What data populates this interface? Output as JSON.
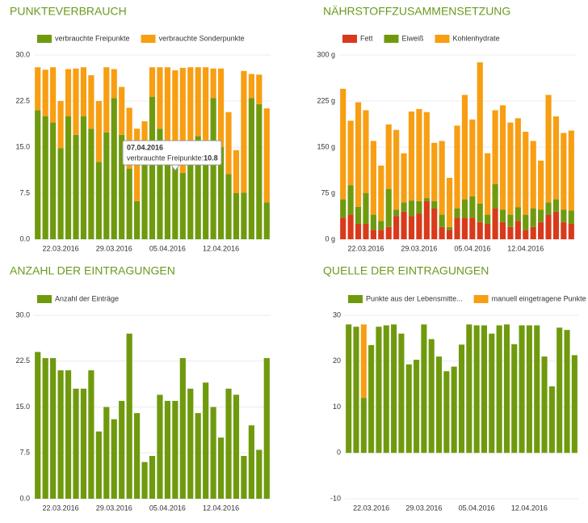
{
  "chart_data": [
    {
      "type": "bar",
      "title": "PUNKTEVERBRAUCH",
      "categories": [
        null,
        null,
        null,
        "22.03.2016",
        null,
        null,
        null,
        null,
        null,
        null,
        "29.03.2016",
        null,
        null,
        null,
        null,
        null,
        null,
        "05.04.2016",
        null,
        null,
        null,
        null,
        null,
        null,
        "12.04.2016",
        null,
        null,
        null,
        null,
        null,
        null
      ],
      "series": [
        {
          "name": "verbrauchte Freipunkte",
          "color": "#6f9a0e",
          "values": [
            21,
            20,
            19,
            14.8,
            20,
            17,
            20,
            18,
            12.6,
            17.4,
            23,
            17,
            11.5,
            6.2,
            15,
            23.2,
            18,
            15,
            15,
            10.8,
            12.3,
            16.8,
            14.9,
            23,
            15,
            10.6,
            7.5,
            7.6,
            23,
            22,
            6
          ]
        },
        {
          "name": "verbrauchte Sonderpunkte",
          "color": "#f89e12",
          "values": [
            7,
            7.6,
            9,
            7.7,
            7.7,
            10.8,
            8,
            8.7,
            9.9,
            10.6,
            4.7,
            7.8,
            9.9,
            11.8,
            4.2,
            4.8,
            10,
            13,
            12.5,
            17.1,
            15.7,
            11.2,
            13.1,
            4.8,
            12.8,
            10.1,
            7,
            19.8,
            3.9,
            4.8,
            15.3
          ]
        }
      ],
      "ylim": [
        0,
        30
      ],
      "yticks": [
        {
          "value": 0,
          "label": "0.0"
        },
        7.5,
        {
          "value": 15,
          "label": "15.0"
        },
        22.5,
        {
          "value": 30,
          "label": "30.0"
        }
      ],
      "grid": true,
      "legend": "top",
      "tooltip": {
        "date": "07.04.2016",
        "label": "verbrauchte Freipunkte:",
        "value": 10.8
      }
    },
    {
      "type": "bar",
      "title": "NÄHRSTOFFZUSAMMENSETZUNG",
      "categories": [
        null,
        null,
        null,
        "22.03.2016",
        null,
        null,
        null,
        null,
        null,
        null,
        "29.03.2016",
        null,
        null,
        null,
        null,
        null,
        null,
        "05.04.2016",
        null,
        null,
        null,
        null,
        null,
        null,
        "12.04.2016",
        null,
        null,
        null,
        null,
        null,
        null
      ],
      "series": [
        {
          "name": "Fett",
          "color": "#d93a1b",
          "values": [
            35,
            40,
            25,
            25,
            15,
            15,
            20,
            38,
            45,
            38,
            42,
            62,
            50,
            20,
            15,
            35,
            35,
            35,
            28,
            25,
            50,
            28,
            20,
            30,
            15,
            20,
            28,
            40,
            45,
            28,
            25
          ]
        },
        {
          "name": "Eiweiß",
          "color": "#6f9a0e",
          "values": [
            30,
            48,
            28,
            50,
            25,
            15,
            62,
            10,
            15,
            25,
            20,
            5,
            12,
            20,
            5,
            15,
            30,
            35,
            30,
            15,
            40,
            20,
            20,
            22,
            25,
            30,
            20,
            20,
            20,
            20,
            22
          ]
        },
        {
          "name": "Kohlenhydrate",
          "color": "#f89e12",
          "values": [
            180,
            105,
            170,
            135,
            120,
            90,
            105,
            130,
            80,
            145,
            150,
            140,
            95,
            120,
            80,
            135,
            170,
            125,
            230,
            100,
            120,
            170,
            150,
            145,
            135,
            110,
            80,
            175,
            135,
            125,
            130
          ]
        }
      ],
      "ylim": [
        0,
        300
      ],
      "yticks": [
        {
          "value": 0,
          "label": "0 g"
        },
        {
          "value": 75,
          "label": "75 g"
        },
        {
          "value": 150,
          "label": "150 g"
        },
        {
          "value": 225,
          "label": "225 g"
        },
        {
          "value": 300,
          "label": "300 g"
        }
      ],
      "grid": true,
      "legend": "top"
    },
    {
      "type": "bar",
      "title": "ANZAHL DER EINTRAGUNGEN",
      "categories": [
        null,
        null,
        null,
        "22.03.2016",
        null,
        null,
        null,
        null,
        null,
        null,
        "29.03.2016",
        null,
        null,
        null,
        null,
        null,
        null,
        "05.04.2016",
        null,
        null,
        null,
        null,
        null,
        null,
        "12.04.2016",
        null,
        null,
        null,
        null,
        null,
        null
      ],
      "series": [
        {
          "name": "Anzahl der Einträge",
          "color": "#6f9a0e",
          "values": [
            24,
            23,
            23,
            21,
            21,
            18,
            18,
            21,
            11,
            15,
            13,
            16,
            27,
            14,
            6,
            7,
            17,
            16,
            16,
            23,
            18,
            14,
            19,
            15,
            10,
            18,
            17,
            7,
            12,
            8,
            23
          ]
        }
      ],
      "ylim": [
        0,
        30
      ],
      "yticks": [
        {
          "value": 0,
          "label": "0.0"
        },
        7.5,
        {
          "value": 15,
          "label": "15.0"
        },
        22.5,
        {
          "value": 30,
          "label": "30.0"
        }
      ],
      "grid": true,
      "legend": "top"
    },
    {
      "type": "bar",
      "title": "QUELLE DER EINTRAGUNGEN",
      "categories": [
        null,
        null,
        null,
        "22.03.2016",
        null,
        null,
        null,
        null,
        null,
        null,
        "29.03.2016",
        null,
        null,
        null,
        null,
        null,
        null,
        "05.04.2016",
        null,
        null,
        null,
        null,
        null,
        null,
        "12.04.2016",
        null,
        null,
        null,
        null,
        null,
        null
      ],
      "series": [
        {
          "name": "Punkte aus der Lebensmitte...",
          "color": "#6f9a0e",
          "values": [
            28,
            27.5,
            12,
            23.5,
            27.5,
            27.8,
            28,
            26,
            19.3,
            20.3,
            28,
            24.8,
            21,
            17.8,
            18.8,
            23.6,
            28,
            27.8,
            27.8,
            26,
            27.8,
            28,
            23.7,
            27.8,
            27.8,
            27.8,
            21,
            14.5,
            27.3,
            26.8,
            21.3
          ]
        },
        {
          "name": "manuell eingetragene Punkte",
          "color": "#f89e12",
          "values": [
            0,
            0,
            16,
            0,
            0,
            0,
            0,
            0,
            0,
            0,
            0,
            0,
            0,
            0,
            0,
            0,
            0,
            0,
            0,
            0,
            0,
            0,
            0,
            0,
            0,
            0,
            0,
            0,
            0,
            0,
            0
          ]
        }
      ],
      "ylim": [
        -10,
        30
      ],
      "yticks": [
        -10,
        0,
        10,
        20,
        30
      ],
      "grid": true,
      "legend": "top"
    }
  ]
}
